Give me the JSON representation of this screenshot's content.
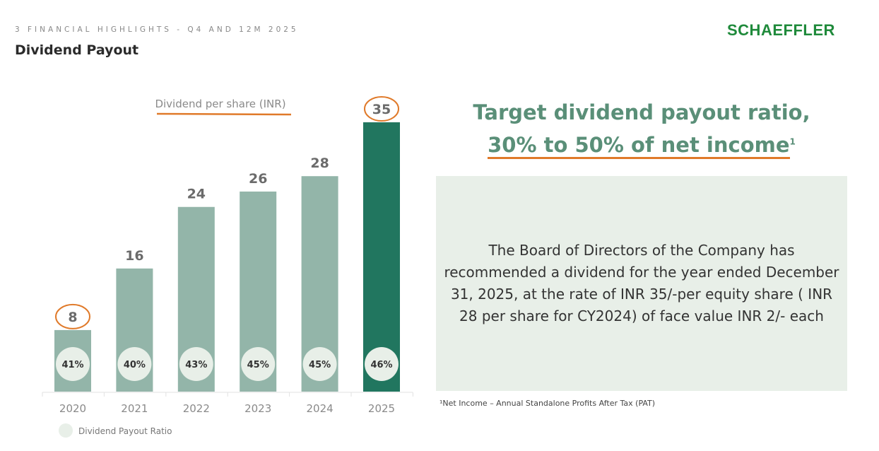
{
  "header": {
    "kicker": "3 FINANCIAL HIGHLIGHTS - Q4 AND 12M 2025",
    "title": "Dividend Payout",
    "logo": "SCHAEFFLER"
  },
  "chart_data": {
    "type": "bar",
    "title": "Dividend per share (INR)",
    "categories": [
      "2020",
      "2021",
      "2022",
      "2023",
      "2024",
      "2025"
    ],
    "series": [
      {
        "name": "Dividend per share (INR)",
        "values": [
          8,
          16,
          24,
          26,
          28,
          35
        ]
      }
    ],
    "payout_ratio": {
      "name": "Dividend Payout Ratio",
      "labels": [
        "41%",
        "40%",
        "43%",
        "45%",
        "45%",
        "46%"
      ],
      "values": [
        41,
        40,
        43,
        45,
        45,
        46
      ]
    },
    "highlighted": [
      "2020",
      "2025"
    ],
    "ylim": [
      0,
      35
    ],
    "grid": false,
    "legend": "bottom-left",
    "colors": {
      "bar": "#93b5a9",
      "highlight_bar": "#21765f",
      "circle": "#e8efe8",
      "annotation": "#e07a2a"
    }
  },
  "target": {
    "line1": "Target dividend payout ratio,",
    "line2": "30% to 50% of net income",
    "sup": "1"
  },
  "box": {
    "text": "The Board of Directors of the Company has recommended a dividend for the year ended December 31, 2025, at the rate of INR 35/-per equity share ( INR 28 per share for CY2024) of face value INR 2/- each"
  },
  "footnote": "¹Net Income – Annual Standalone Profits After Tax (PAT)"
}
